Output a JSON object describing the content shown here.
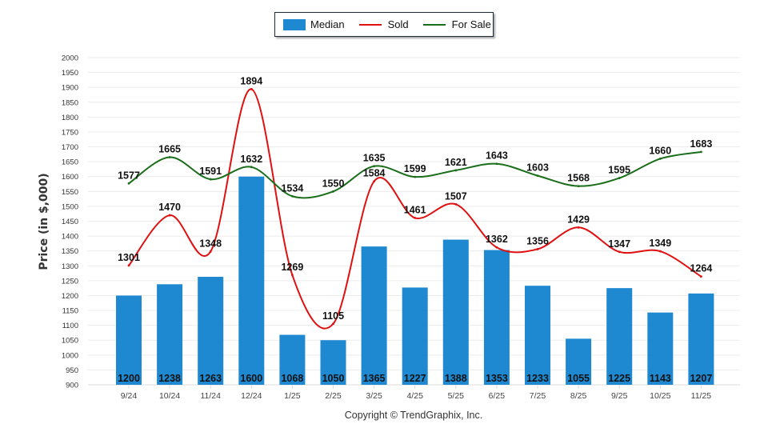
{
  "legend": {
    "items": [
      {
        "label": "Median",
        "kind": "bar",
        "color": "#1e88d0"
      },
      {
        "label": "Sold",
        "kind": "line",
        "color": "#e01010"
      },
      {
        "label": "For Sale",
        "kind": "line",
        "color": "#1a6e1a"
      }
    ]
  },
  "copyright": "Copyright © TrendGraphix, Inc.",
  "chart_data": {
    "type": "bar",
    "title": "",
    "xlabel": "",
    "ylabel": "Price (in $,000)",
    "ylim": [
      900,
      2000
    ],
    "ytick_step": 50,
    "grid": true,
    "legend_position": "top-center",
    "categories": [
      "9/24",
      "10/24",
      "11/24",
      "12/24",
      "1/25",
      "2/25",
      "3/25",
      "4/25",
      "5/25",
      "6/25",
      "7/25",
      "8/25",
      "9/25",
      "10/25",
      "11/25"
    ],
    "series": [
      {
        "name": "Median",
        "type": "bar",
        "color": "#1e88d0",
        "values": [
          1200,
          1238,
          1263,
          1600,
          1068,
          1050,
          1365,
          1227,
          1388,
          1353,
          1233,
          1055,
          1225,
          1143,
          1207
        ]
      },
      {
        "name": "Sold",
        "type": "line",
        "color": "#e01010",
        "values": [
          1301,
          1470,
          1348,
          1894,
          1269,
          1105,
          1584,
          1461,
          1507,
          1362,
          1356,
          1429,
          1347,
          1349,
          1264
        ]
      },
      {
        "name": "For Sale",
        "type": "line",
        "color": "#1a6e1a",
        "values": [
          1577,
          1665,
          1591,
          1632,
          1534,
          1550,
          1635,
          1599,
          1621,
          1643,
          1603,
          1568,
          1595,
          1660,
          1683
        ]
      }
    ]
  }
}
